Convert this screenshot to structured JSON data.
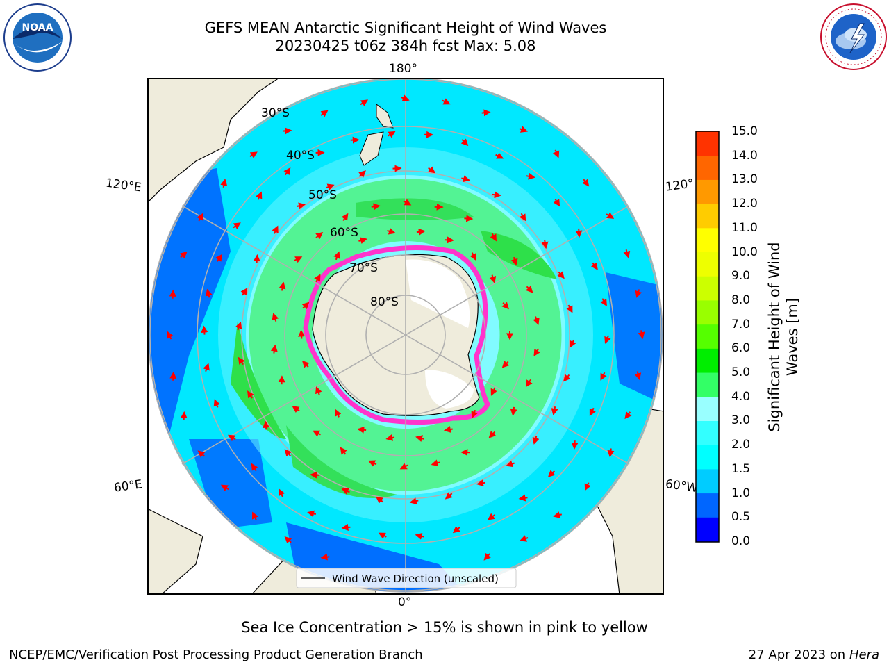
{
  "title": {
    "line1": "GEFS MEAN Antarctic Significant Height of Wind Waves",
    "line2": "20230425 t06z 384h fcst   Max: 5.08"
  },
  "map": {
    "projection": "south-polar-stereographic",
    "lon_labels": {
      "top": "180°",
      "bottom": "0°",
      "left_upper": "120°E",
      "left_lower": "60°E",
      "right_upper": "120°",
      "right_lower": "60°W"
    },
    "lat_labels": [
      "30°S",
      "40°S",
      "50°S",
      "60°S",
      "70°S",
      "80°S"
    ],
    "legend": {
      "label": "Wind Wave Direction (unscaled)"
    },
    "colors": {
      "land": "#efecdc",
      "ice_edge": "#ff33cc",
      "arrow": "#ff0000",
      "grid": "#b0b0b0"
    }
  },
  "colorbar": {
    "label": "Significant Height of Wind Waves [m]",
    "ticks": [
      "0.0",
      "0.5",
      "1.0",
      "1.5",
      "2.0",
      "3.0",
      "4.0",
      "5.0",
      "6.0",
      "7.0",
      "8.0",
      "9.0",
      "10.0",
      "11.0",
      "12.0",
      "13.0",
      "14.0",
      "15.0"
    ],
    "colors": [
      "#0000ff",
      "#0066ff",
      "#00ccff",
      "#00ffff",
      "#33ffff",
      "#99ffff",
      "#33ff66",
      "#00ee00",
      "#55ff00",
      "#99ff00",
      "#ccff00",
      "#eeff00",
      "#ffff00",
      "#ffcc00",
      "#ff9900",
      "#ff6600",
      "#ff3300",
      "#ff0000"
    ]
  },
  "note": "Sea Ice Concentration > 15% is shown in pink to yellow",
  "footer": {
    "left": "NCEP/EMC/Verification Post Processing Product Generation Branch",
    "right_date": "27 Apr 2023 on",
    "right_host": "Hera"
  },
  "logos": {
    "left": "noara-logo",
    "right": "national-weather-service-logo"
  }
}
